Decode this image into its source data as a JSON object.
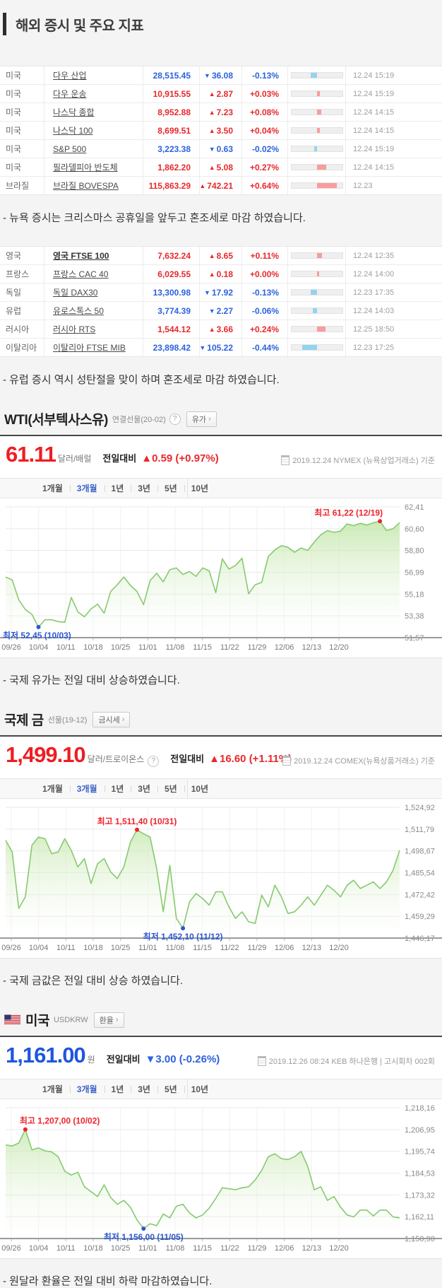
{
  "header": {
    "title": "해외 증시 및 주요 지표"
  },
  "market_tables": [
    {
      "note": "- 뉴욕 증시는 크리스마스 공휴일을 앞두고 혼조세로 마감 하였습니다.",
      "rows": [
        {
          "country": "미국",
          "index_name": "다우 산업",
          "value": "28,515.45",
          "direction": "down",
          "change": "36.08",
          "percent": "-0.13%",
          "time": "12.24 15:19",
          "strong": false
        },
        {
          "country": "미국",
          "index_name": "다우 운송",
          "value": "10,915.55",
          "direction": "up",
          "change": "2.87",
          "percent": "+0.03%",
          "time": "12.24 15:19",
          "strong": false
        },
        {
          "country": "미국",
          "index_name": "나스닥 종합",
          "value": "8,952.88",
          "direction": "up",
          "change": "7.23",
          "percent": "+0.08%",
          "time": "12.24 14:15",
          "strong": false
        },
        {
          "country": "미국",
          "index_name": "나스닥 100",
          "value": "8,699.51",
          "direction": "up",
          "change": "3.50",
          "percent": "+0.04%",
          "time": "12.24 14:15",
          "strong": false
        },
        {
          "country": "미국",
          "index_name": "S&P 500",
          "value": "3,223.38",
          "direction": "down",
          "change": "0.63",
          "percent": "-0.02%",
          "time": "12.24 15:19",
          "strong": false
        },
        {
          "country": "미국",
          "index_name": "필라델피아 반도체",
          "value": "1,862.20",
          "direction": "up",
          "change": "5.08",
          "percent": "+0.27%",
          "time": "12.24 14:15",
          "strong": false
        },
        {
          "country": "브라질",
          "index_name": "브라질 BOVESPA",
          "value": "115,863.29",
          "direction": "up",
          "change": "742.21",
          "percent": "+0.64%",
          "time": "12.23",
          "strong": false
        }
      ]
    },
    {
      "note": "- 유럽 증시 역시 성탄절을 맞이 하며 혼조세로 마감 하였습니다.",
      "rows": [
        {
          "country": "영국",
          "index_name": "영국 FTSE 100",
          "value": "7,632.24",
          "direction": "up",
          "change": "8.65",
          "percent": "+0.11%",
          "time": "12.24 12:35",
          "strong": true
        },
        {
          "country": "프랑스",
          "index_name": "프랑스 CAC 40",
          "value": "6,029.55",
          "direction": "up",
          "change": "0.18",
          "percent": "+0.00%",
          "time": "12.24 14:00",
          "strong": false
        },
        {
          "country": "독일",
          "index_name": "독일 DAX30",
          "value": "13,300.98",
          "direction": "down",
          "change": "17.92",
          "percent": "-0.13%",
          "time": "12.23 17:35",
          "strong": false
        },
        {
          "country": "유럽",
          "index_name": "유로스톡스 50",
          "value": "3,774.39",
          "direction": "down",
          "change": "2.27",
          "percent": "-0.06%",
          "time": "12.24 14:03",
          "strong": false
        },
        {
          "country": "러시아",
          "index_name": "러시아 RTS",
          "value": "1,544.12",
          "direction": "up",
          "change": "3.66",
          "percent": "+0.24%",
          "time": "12.25 18:50",
          "strong": false
        },
        {
          "country": "이탈리아",
          "index_name": "이탈리아 FTSE MIB",
          "value": "23,898.42",
          "direction": "down",
          "change": "105.22",
          "percent": "-0.44%",
          "time": "12.23 17:25",
          "strong": false
        }
      ]
    }
  ],
  "sections": [
    {
      "id": "wti",
      "title": "WTI(서부텍사스유)",
      "subtitle": "연결선물(20-02)",
      "link_label": "유가",
      "link_arrow": "›",
      "help_glyph": "?",
      "price": "61.11",
      "unit": "달러/배럴",
      "compare_label": "전일대비",
      "direction": "up",
      "change": "0.59",
      "change_pct": "(+0.97%)",
      "reference": "2019.12.24 NYMEX (뉴욕상업거래소) 기준",
      "tabs": [
        "1개월",
        "3개월",
        "1년",
        "3년",
        "5년",
        "10년"
      ],
      "active_tab": "3개월",
      "note": "- 국제 유가는 전일 대비 상승하였습니다."
    },
    {
      "id": "gold",
      "title": "국제 금",
      "subtitle": "선물(19-12)",
      "link_label": "금시세",
      "link_arrow": "›",
      "help_glyph": "?",
      "price": "1,499.10",
      "unit": "달러/트로이온스",
      "compare_label": "전일대비",
      "direction": "up",
      "change": "16.60",
      "change_pct": "(+1.11%)",
      "reference": "2019.12.24 COMEX(뉴욕상품거래소) 기준",
      "tabs": [
        "1개월",
        "3개월",
        "1년",
        "3년",
        "5년",
        "10년"
      ],
      "active_tab": "3개월",
      "note": "- 국제 금값은 전일 대비 상승 하였습니다."
    },
    {
      "id": "usd",
      "title": "미국",
      "subtitle": "USDKRW",
      "link_label": "환율",
      "link_arrow": "›",
      "price": "1,161.00",
      "unit": "원",
      "compare_label": "전일대비",
      "direction": "down",
      "change": "3.00",
      "change_pct": "(-0.26%)",
      "reference": "2019.12.26 08:24 KEB 하나은행 | 고시회차 002회",
      "tabs": [
        "1개월",
        "3개월",
        "1년",
        "3년",
        "5년",
        "10년"
      ],
      "active_tab": "3개월",
      "note": "- 원달라 환율은 전일 대비 하락 마감하였습니다."
    }
  ],
  "chart_data": [
    {
      "type": "area",
      "title": "WTI(서부텍사스유) 3개월 차트",
      "xlabel": "",
      "ylabel": "달러/배럴",
      "x_ticks": [
        "09/26",
        "10/04",
        "10/11",
        "10/18",
        "10/25",
        "11/01",
        "11/08",
        "11/15",
        "11/22",
        "11/29",
        "12/06",
        "12/13",
        "12/20"
      ],
      "y_ticks": [
        "62,41",
        "60,60",
        "58,80",
        "56,99",
        "55,18",
        "53,38",
        "51,57"
      ],
      "y_range": [
        51.57,
        62.41
      ],
      "values": [
        56.6,
        56.35,
        54.7,
        53.9,
        53.5,
        52.45,
        53.05,
        53.05,
        52.9,
        52.85,
        54.9,
        53.7,
        53.3,
        53.95,
        54.35,
        53.6,
        55.4,
        55.95,
        56.6,
        55.9,
        55.4,
        54.3,
        56.3,
        56.9,
        56.2,
        57.2,
        57.35,
        56.8,
        57.05,
        56.65,
        57.35,
        57.1,
        55.3,
        58.1,
        57.25,
        57.55,
        58.15,
        55.2,
        55.95,
        56.15,
        58.3,
        58.85,
        59.2,
        59.05,
        58.65,
        59.0,
        58.8,
        59.5,
        60.1,
        60.45,
        60.3,
        60.4,
        61.0,
        60.85,
        61.05,
        60.9,
        61.1,
        61.22,
        60.45,
        60.6,
        61.11
      ],
      "annotations": {
        "max": {
          "label": "최고 61,22 (12/19)",
          "index": 57,
          "value": 61.22,
          "placement": "above-end"
        },
        "min": {
          "label": "최저 52,45 (10/03)",
          "index": 5,
          "value": 52.45,
          "placement": "below-start"
        }
      }
    },
    {
      "type": "area",
      "title": "국제 금 3개월 차트",
      "xlabel": "",
      "ylabel": "달러/트로이온스",
      "x_ticks": [
        "09/26",
        "10/04",
        "10/11",
        "10/18",
        "10/25",
        "11/01",
        "11/08",
        "11/15",
        "11/22",
        "11/29",
        "12/06",
        "12/13",
        "12/20"
      ],
      "y_ticks": [
        "1,524,92",
        "1,511,79",
        "1,498,67",
        "1,485,54",
        "1,472,42",
        "1,459,29",
        "1,446,17"
      ],
      "y_range": [
        1446.17,
        1524.92
      ],
      "values": [
        1505,
        1498,
        1464,
        1471,
        1502,
        1507,
        1506,
        1497,
        1498,
        1506,
        1499,
        1489,
        1494,
        1479,
        1491,
        1494,
        1486,
        1482,
        1489,
        1504,
        1511.4,
        1509,
        1507,
        1488,
        1462,
        1490,
        1458,
        1452.1,
        1468,
        1473,
        1470,
        1466,
        1474,
        1474,
        1465,
        1458,
        1462,
        1456,
        1455,
        1472,
        1465,
        1478,
        1471,
        1461,
        1462,
        1466,
        1471,
        1466,
        1472,
        1478,
        1475,
        1471,
        1478,
        1481,
        1476,
        1478,
        1480,
        1476,
        1480,
        1487,
        1499.1
      ],
      "annotations": {
        "max": {
          "label": "최고 1,511,40 (10/31)",
          "index": 20,
          "value": 1511.4,
          "placement": "above-center"
        },
        "min": {
          "label": "최저 1,452,10 (11/12)",
          "index": 27,
          "value": 1452.1,
          "placement": "below-center"
        }
      }
    },
    {
      "type": "area",
      "title": "미국 USDKRW 3개월 차트",
      "xlabel": "",
      "ylabel": "원",
      "x_ticks": [
        "09/26",
        "10/04",
        "10/11",
        "10/18",
        "10/25",
        "11/01",
        "11/08",
        "11/15",
        "11/22",
        "11/29",
        "12/06",
        "12/13",
        "12/20"
      ],
      "y_ticks": [
        "1,218,16",
        "1,206,95",
        "1,195,74",
        "1,184,53",
        "1,173,32",
        "1,162,11",
        "1,150,90"
      ],
      "y_range": [
        1150.9,
        1218.16
      ],
      "values": [
        1199,
        1198.5,
        1200,
        1207,
        1196.5,
        1197.5,
        1196,
        1195.5,
        1193,
        1185.5,
        1183.5,
        1185,
        1177.5,
        1175,
        1172.5,
        1178.5,
        1172,
        1168.5,
        1170.5,
        1167,
        1160.5,
        1156,
        1158.5,
        1157.5,
        1163.5,
        1161.5,
        1167.5,
        1168.5,
        1164,
        1161.5,
        1163,
        1166.5,
        1171.5,
        1177,
        1176.5,
        1176,
        1177,
        1177.5,
        1181,
        1186,
        1193,
        1194.5,
        1192,
        1191.5,
        1193,
        1195.7,
        1188,
        1176,
        1177.5,
        1170.5,
        1172.5,
        1167,
        1163,
        1162,
        1165.5,
        1165.5,
        1162.5,
        1165.5,
        1165.5,
        1162,
        1161.5
      ],
      "annotations": {
        "max": {
          "label": "최고 1,207,00 (10/02)",
          "index": 3,
          "value": 1207.0,
          "placement": "above-start"
        },
        "min": {
          "label": "최저 1,156,00 (11/05)",
          "index": 21,
          "value": 1156.0,
          "placement": "below-center"
        }
      }
    }
  ]
}
